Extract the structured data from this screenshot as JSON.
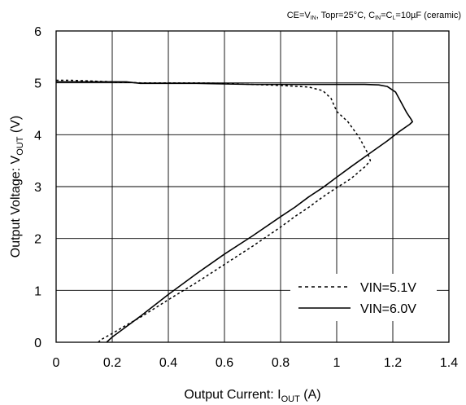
{
  "chart_data": {
    "type": "line",
    "conditions": "CE=V₀, Topr=25°C, C₀=C₁=10µF (ceramic)",
    "conditions_parts": [
      "CE=V",
      "IN",
      ", Topr=25°C, C",
      "IN",
      "=C",
      "L",
      "=10µF (ceramic)"
    ],
    "xlabel": {
      "main": "Output Current: I",
      "sub": "OUT",
      "unit": " (A)"
    },
    "ylabel": {
      "main": "Output Voltage: V",
      "sub": "OUT",
      "unit": " (V)"
    },
    "xlim": [
      0,
      1.4
    ],
    "ylim": [
      0,
      6
    ],
    "xticks": [
      "0",
      "0.2",
      "0.4",
      "0.6",
      "0.8",
      "1",
      "1.2",
      "1.4"
    ],
    "yticks": [
      "0",
      "1",
      "2",
      "3",
      "4",
      "5",
      "6"
    ],
    "grid": true,
    "legend_position": "bottom-right",
    "series": [
      {
        "name": "VIN=5.1V",
        "style": "dotted",
        "points": [
          [
            0,
            5.05
          ],
          [
            0.05,
            5.05
          ],
          [
            0.1,
            5.04
          ],
          [
            0.2,
            5.02
          ],
          [
            0.3,
            5.0
          ],
          [
            0.4,
            5.0
          ],
          [
            0.5,
            5.0
          ],
          [
            0.6,
            4.99
          ],
          [
            0.7,
            4.97
          ],
          [
            0.8,
            4.95
          ],
          [
            0.9,
            4.92
          ],
          [
            0.95,
            4.85
          ],
          [
            0.98,
            4.7
          ],
          [
            1.0,
            4.45
          ],
          [
            1.04,
            4.25
          ],
          [
            1.08,
            3.95
          ],
          [
            1.11,
            3.65
          ],
          [
            1.12,
            3.5
          ],
          [
            1.1,
            3.38
          ],
          [
            1.05,
            3.15
          ],
          [
            1.0,
            2.98
          ],
          [
            0.95,
            2.8
          ],
          [
            0.9,
            2.6
          ],
          [
            0.85,
            2.42
          ],
          [
            0.8,
            2.22
          ],
          [
            0.7,
            1.85
          ],
          [
            0.6,
            1.5
          ],
          [
            0.5,
            1.15
          ],
          [
            0.4,
            0.82
          ],
          [
            0.3,
            0.48
          ],
          [
            0.25,
            0.33
          ],
          [
            0.2,
            0.17
          ],
          [
            0.16,
            0.05
          ],
          [
            0.15,
            0.0
          ]
        ]
      },
      {
        "name": "VIN=6.0V",
        "style": "solid",
        "points": [
          [
            0,
            5.02
          ],
          [
            0.1,
            5.02
          ],
          [
            0.2,
            5.02
          ],
          [
            0.25,
            5.02
          ],
          [
            0.3,
            4.99
          ],
          [
            0.4,
            4.99
          ],
          [
            0.5,
            4.99
          ],
          [
            0.6,
            4.98
          ],
          [
            0.7,
            4.97
          ],
          [
            0.8,
            4.97
          ],
          [
            0.9,
            4.97
          ],
          [
            1.0,
            4.97
          ],
          [
            1.1,
            4.97
          ],
          [
            1.15,
            4.96
          ],
          [
            1.18,
            4.93
          ],
          [
            1.21,
            4.82
          ],
          [
            1.23,
            4.62
          ],
          [
            1.25,
            4.42
          ],
          [
            1.265,
            4.3
          ],
          [
            1.27,
            4.25
          ],
          [
            1.26,
            4.2
          ],
          [
            1.22,
            4.05
          ],
          [
            1.18,
            3.88
          ],
          [
            1.12,
            3.65
          ],
          [
            1.05,
            3.38
          ],
          [
            1.0,
            3.18
          ],
          [
            0.95,
            2.98
          ],
          [
            0.9,
            2.8
          ],
          [
            0.85,
            2.6
          ],
          [
            0.8,
            2.42
          ],
          [
            0.7,
            2.05
          ],
          [
            0.6,
            1.7
          ],
          [
            0.5,
            1.32
          ],
          [
            0.4,
            0.92
          ],
          [
            0.3,
            0.5
          ],
          [
            0.25,
            0.3
          ],
          [
            0.2,
            0.1
          ],
          [
            0.18,
            0.0
          ]
        ]
      }
    ]
  }
}
